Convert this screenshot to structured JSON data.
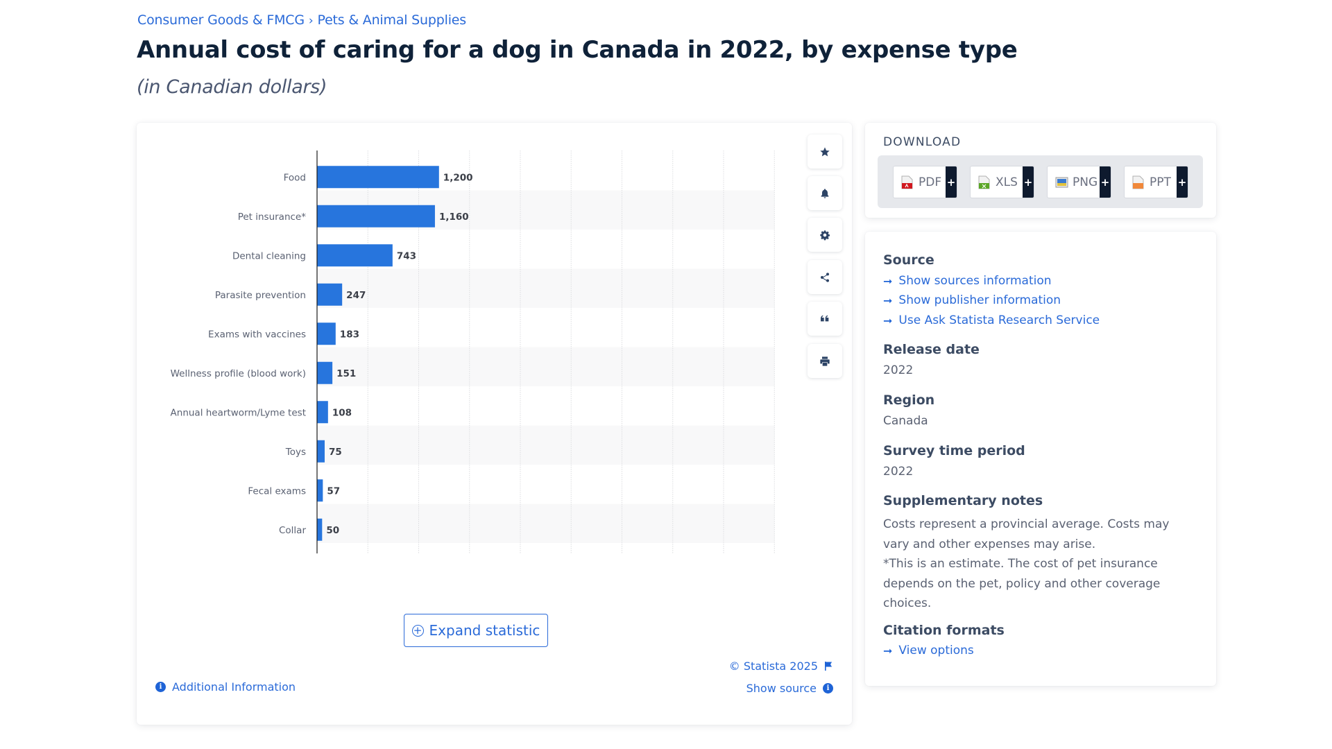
{
  "breadcrumb": {
    "items": [
      "Consumer Goods & FMCG",
      "Pets & Animal Supplies"
    ],
    "separator": "›"
  },
  "header": {
    "title": "Annual cost of caring for a dog in Canada in 2022, by expense type",
    "subtitle": "(in Canadian dollars)"
  },
  "colors": {
    "accent": "#2a6ad8",
    "bar": "#2775dd",
    "title": "#0f2239",
    "dark_tab": "#0e1a2e"
  },
  "chart_data": {
    "type": "bar",
    "orientation": "horizontal",
    "title": "Annual cost of caring for a dog in Canada in 2022, by expense type",
    "subtitle": "(in Canadian dollars)",
    "xlabel": "",
    "ylabel": "",
    "categories": [
      "Food",
      "Pet insurance*",
      "Dental cleaning",
      "Parasite prevention",
      "Exams with vaccines",
      "Wellness profile (blood work)",
      "Annual heartworm/Lyme test",
      "Toys",
      "Fecal exams",
      "Collar"
    ],
    "values": [
      1200,
      1160,
      743,
      247,
      183,
      151,
      108,
      75,
      57,
      50
    ],
    "value_labels": [
      "1,200",
      "1,160",
      "743",
      "247",
      "183",
      "151",
      "108",
      "75",
      "57",
      "50"
    ],
    "xlim": [
      0,
      4500
    ],
    "grid_step": 500,
    "grid": true,
    "legend": "none"
  },
  "chart_toolbar": [
    {
      "name": "favorite",
      "icon": "star-icon"
    },
    {
      "name": "notification",
      "icon": "bell-icon"
    },
    {
      "name": "settings",
      "icon": "gear-icon"
    },
    {
      "name": "share",
      "icon": "share-icon"
    },
    {
      "name": "cite",
      "icon": "quote-icon"
    },
    {
      "name": "print",
      "icon": "print-icon"
    }
  ],
  "chart_footer": {
    "expand_label": "Expand statistic",
    "additional_info": "Additional Information",
    "copyright": "© Statista 2025",
    "show_source": "Show source"
  },
  "download": {
    "title": "DOWNLOAD",
    "buttons": [
      {
        "label": "PDF",
        "icon": "pdf-file-icon",
        "plus": "+"
      },
      {
        "label": "XLS",
        "icon": "xls-file-icon",
        "plus": "+"
      },
      {
        "label": "PNG",
        "icon": "png-image-icon",
        "plus": "+"
      },
      {
        "label": "PPT",
        "icon": "ppt-file-icon",
        "plus": "+"
      }
    ]
  },
  "info": {
    "source_heading": "Source",
    "source_links": [
      "Show sources information",
      "Show publisher information",
      "Use Ask Statista Research Service"
    ],
    "release_heading": "Release date",
    "release_value": "2022",
    "region_heading": "Region",
    "region_value": "Canada",
    "survey_heading": "Survey time period",
    "survey_value": "2022",
    "notes_heading": "Supplementary notes",
    "notes_text_1": "Costs represent a provincial average. Costs may vary and other expenses may arise.",
    "notes_text_2": "*This is an estimate. The cost of pet insurance depends on the pet, policy and other coverage choices.",
    "citation_heading": "Citation formats",
    "citation_link": "View options",
    "arrow": "➞"
  }
}
